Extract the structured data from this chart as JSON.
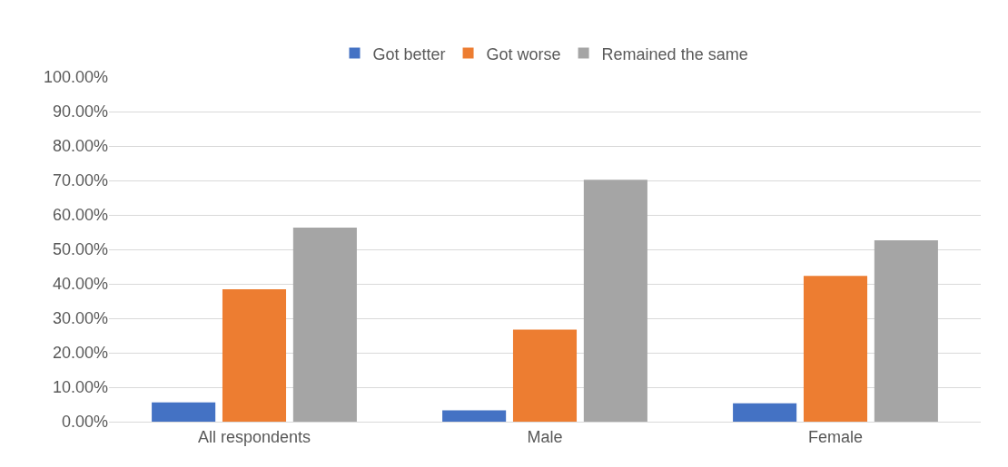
{
  "chart_data": {
    "type": "bar",
    "categories": [
      "All respondents",
      "Male",
      "Female"
    ],
    "series": [
      {
        "name": "Got better",
        "color": "#4472c4",
        "values": [
          5.6,
          3.3,
          5.3
        ]
      },
      {
        "name": "Got worse",
        "color": "#ed7d31",
        "values": [
          38.4,
          26.7,
          42.3
        ]
      },
      {
        "name": "Remained the same",
        "color": "#a5a5a5",
        "values": [
          56.3,
          70.2,
          52.6
        ]
      }
    ],
    "ylim": [
      0,
      100
    ],
    "yticks": [
      {
        "value": 0,
        "label": "0.00%"
      },
      {
        "value": 10,
        "label": "10.00%"
      },
      {
        "value": 20,
        "label": "20.00%"
      },
      {
        "value": 30,
        "label": "30.00%"
      },
      {
        "value": 40,
        "label": "40.00%"
      },
      {
        "value": 50,
        "label": "50.00%"
      },
      {
        "value": 60,
        "label": "60.00%"
      },
      {
        "value": 70,
        "label": "70.00%"
      },
      {
        "value": 80,
        "label": "80.00%"
      },
      {
        "value": 90,
        "label": "90.00%"
      },
      {
        "value": 100,
        "label": "100.00%"
      }
    ],
    "grid": "y",
    "legend": "top"
  }
}
